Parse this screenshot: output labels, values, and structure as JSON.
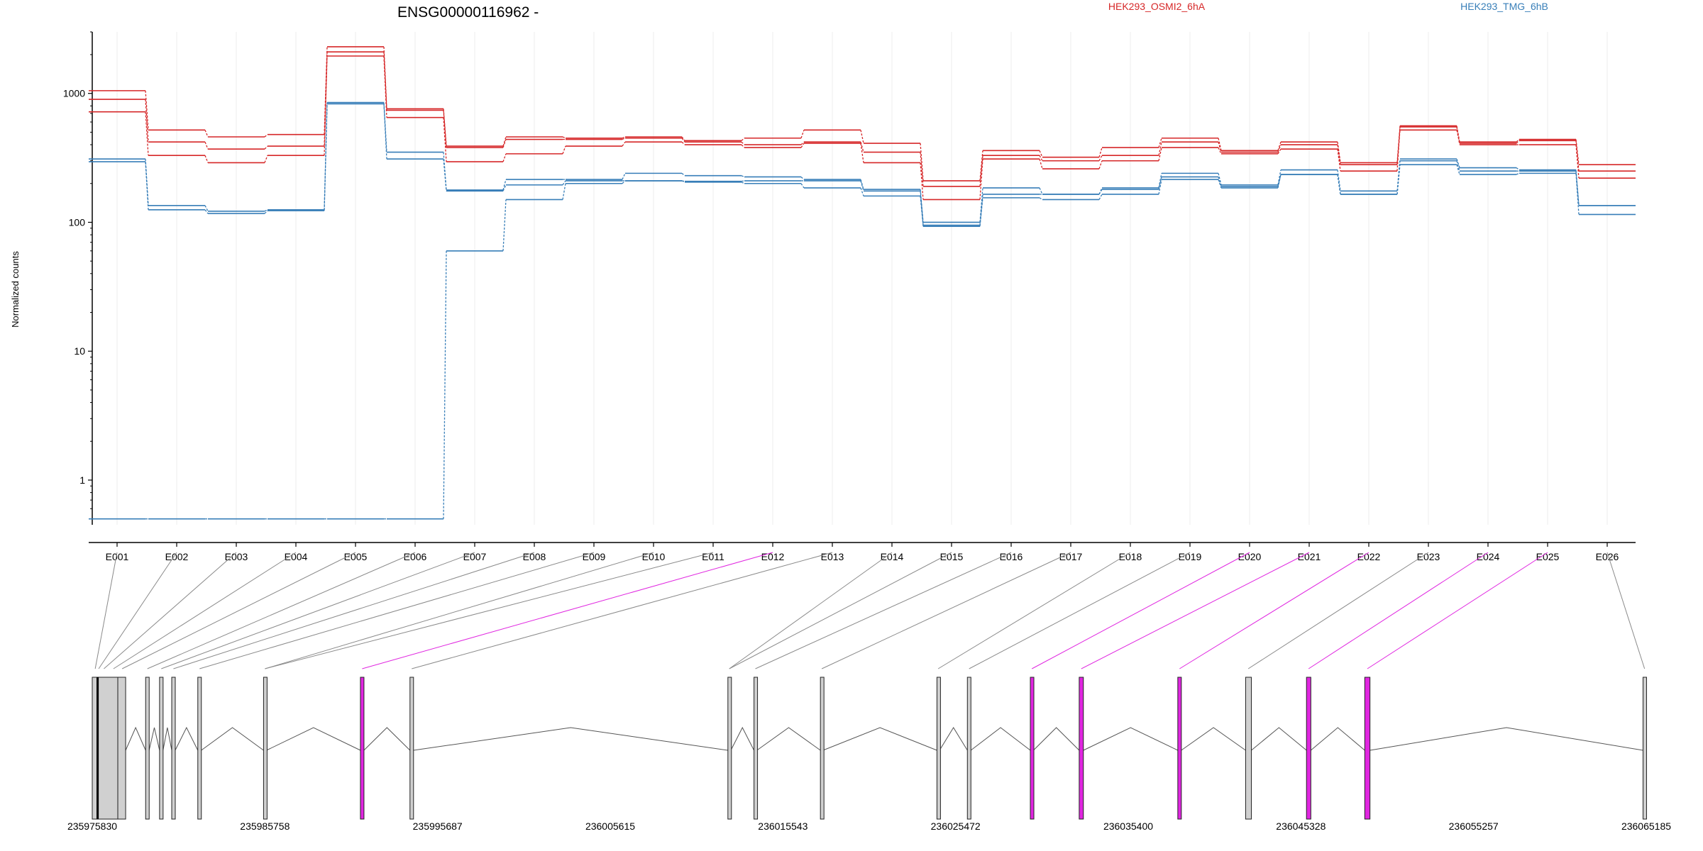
{
  "chart_data": {
    "type": "line",
    "title": "ENSG00000116962 -",
    "ylabel": "Normalized counts",
    "xlabel": "",
    "y_scale": "log",
    "ylim": [
      0.45,
      3000
    ],
    "y_ticks": [
      1,
      10,
      100,
      1000
    ],
    "grid": "vertical, light",
    "legend_placement": "top",
    "categories": [
      "E001",
      "E002",
      "E003",
      "E004",
      "E005",
      "E006",
      "E007",
      "E008",
      "E009",
      "E010",
      "E011",
      "E012",
      "E013",
      "E014",
      "E015",
      "E016",
      "E017",
      "E018",
      "E019",
      "E020",
      "E021",
      "E022",
      "E023",
      "E024",
      "E025",
      "E026"
    ],
    "series": [
      {
        "group": "HEK293_OSMI2_6hA",
        "color": "#d62728",
        "values": [
          1050,
          520,
          460,
          480,
          2300,
          760,
          390,
          460,
          450,
          460,
          430,
          450,
          520,
          410,
          210,
          360,
          320,
          380,
          450,
          360,
          420,
          290,
          560,
          420,
          440,
          280
        ]
      },
      {
        "group": "HEK293_OSMI2_6hA",
        "color": "#d62728",
        "values": [
          900,
          420,
          370,
          390,
          2100,
          740,
          380,
          440,
          440,
          450,
          420,
          400,
          420,
          350,
          190,
          330,
          300,
          330,
          420,
          350,
          400,
          280,
          520,
          410,
          430,
          250
        ]
      },
      {
        "group": "HEK293_OSMI2_6hA",
        "color": "#d62728",
        "values": [
          720,
          330,
          290,
          330,
          1950,
          650,
          295,
          340,
          390,
          420,
          400,
          380,
          410,
          290,
          150,
          310,
          260,
          300,
          380,
          340,
          370,
          250,
          550,
          400,
          400,
          220
        ]
      },
      {
        "group": "HEK293_TMG_6hB",
        "color": "#377eb8",
        "values": [
          310,
          135,
          122,
          125,
          850,
          350,
          178,
          215,
          215,
          240,
          230,
          225,
          215,
          180,
          100,
          185,
          165,
          185,
          240,
          195,
          255,
          175,
          310,
          265,
          255,
          135
        ]
      },
      {
        "group": "HEK293_TMG_6hB",
        "color": "#377eb8",
        "values": [
          295,
          125,
          117,
          123,
          830,
          310,
          175,
          195,
          210,
          210,
          208,
          210,
          210,
          175,
          95,
          165,
          165,
          180,
          225,
          190,
          235,
          165,
          300,
          250,
          250,
          135
        ]
      },
      {
        "group": "HEK293_TMG_6hB",
        "color": "#377eb8",
        "values": [
          0.5,
          0.5,
          0.5,
          0.5,
          0.5,
          0.5,
          60,
          150,
          200,
          210,
          205,
          200,
          185,
          160,
          93,
          155,
          150,
          165,
          215,
          185,
          235,
          165,
          280,
          235,
          240,
          115
        ]
      }
    ],
    "legend": [
      {
        "name": "HEK293_OSMI2_6hA",
        "color": "#d62728"
      },
      {
        "name": "HEK293_TMG_6hB",
        "color": "#377eb8"
      }
    ],
    "gene_model": {
      "coordinate_labels": [
        "235975830",
        "235985758",
        "235995687",
        "236005615",
        "236015543",
        "236025472",
        "236035400",
        "236045328",
        "236055257",
        "236065185"
      ],
      "exon_fill": "#d0d0d0",
      "highlight_fill": "#e026e0",
      "exons": [
        {
          "id": "E001",
          "start": 235975830,
          "end": 235976100,
          "highlight": false
        },
        {
          "id": "E002",
          "start": 235976100,
          "end": 235977300,
          "highlight": false
        },
        {
          "id": "E003",
          "start": 235977300,
          "end": 235977750,
          "highlight": false
        },
        {
          "id": "E004",
          "start": 235978900,
          "end": 235979100,
          "highlight": false
        },
        {
          "id": "E005",
          "start": 235979700,
          "end": 235979900,
          "highlight": false
        },
        {
          "id": "E006",
          "start": 235980400,
          "end": 235980600,
          "highlight": false
        },
        {
          "id": "E007",
          "start": 235981900,
          "end": 235982100,
          "highlight": false
        },
        {
          "id": "E008",
          "start": 235985680,
          "end": 235985850,
          "highlight": false
        },
        {
          "id": "E009",
          "start": 235991250,
          "end": 235991450,
          "highlight": true
        },
        {
          "id": "E010",
          "start": 235994100,
          "end": 235994300,
          "highlight": false
        },
        {
          "id": "E011",
          "start": 236012380,
          "end": 236012550,
          "highlight": false
        },
        {
          "id": "E012",
          "start": 236013880,
          "end": 236014050,
          "highlight": false
        },
        {
          "id": "E013",
          "start": 236017700,
          "end": 236017850,
          "highlight": false
        },
        {
          "id": "E014",
          "start": 236024400,
          "end": 236024550,
          "highlight": false
        },
        {
          "id": "E015",
          "start": 236026150,
          "end": 236026350,
          "highlight": false
        },
        {
          "id": "E016",
          "start": 236029770,
          "end": 236029950,
          "highlight": true
        },
        {
          "id": "E017",
          "start": 236032580,
          "end": 236032820,
          "highlight": true
        },
        {
          "id": "E018",
          "start": 236038250,
          "end": 236038450,
          "highlight": true
        },
        {
          "id": "E019",
          "start": 236042150,
          "end": 236042480,
          "highlight": false
        },
        {
          "id": "E020",
          "start": 236045650,
          "end": 236045900,
          "highlight": true
        },
        {
          "id": "E021",
          "start": 236049000,
          "end": 236049300,
          "highlight": true
        },
        {
          "id": "E022",
          "start": 236065000,
          "end": 236065185,
          "highlight": false
        }
      ],
      "connectors": [
        {
          "exon": "E001",
          "at": 235976000,
          "highlight": false
        },
        {
          "exon": "E002",
          "at": 235976200,
          "highlight": false
        },
        {
          "exon": "E003",
          "at": 235976500,
          "highlight": false
        },
        {
          "exon": "E004",
          "at": 235977050,
          "highlight": false
        },
        {
          "exon": "E005",
          "at": 235977550,
          "highlight": false
        },
        {
          "exon": "E006",
          "at": 235979000,
          "highlight": false
        },
        {
          "exon": "E007",
          "at": 235979800,
          "highlight": false
        },
        {
          "exon": "E008",
          "at": 235980500,
          "highlight": false
        },
        {
          "exon": "E009",
          "at": 235982000,
          "highlight": false
        },
        {
          "exon": "E010",
          "at": 235985760,
          "highlight": false
        },
        {
          "exon": "E011",
          "at": 235985760,
          "highlight": false
        },
        {
          "exon": "E012",
          "at": 235991350,
          "highlight": true
        },
        {
          "exon": "E013",
          "at": 235994200,
          "highlight": false
        },
        {
          "exon": "E014",
          "at": 236012460,
          "highlight": false
        },
        {
          "exon": "E015",
          "at": 236012460,
          "highlight": false
        },
        {
          "exon": "E016",
          "at": 236013960,
          "highlight": false
        },
        {
          "exon": "E017",
          "at": 236017780,
          "highlight": false
        },
        {
          "exon": "E018",
          "at": 236024470,
          "highlight": false
        },
        {
          "exon": "E019",
          "at": 236026250,
          "highlight": false
        },
        {
          "exon": "E020",
          "at": 236029860,
          "highlight": true
        },
        {
          "exon": "E021",
          "at": 236032700,
          "highlight": true
        },
        {
          "exon": "E022",
          "at": 236038350,
          "highlight": true
        },
        {
          "exon": "E023",
          "at": 236042300,
          "highlight": false
        },
        {
          "exon": "E024",
          "at": 236045770,
          "highlight": true
        },
        {
          "exon": "E025",
          "at": 236049150,
          "highlight": true
        },
        {
          "exon": "E026",
          "at": 236065090,
          "highlight": false
        }
      ]
    }
  }
}
